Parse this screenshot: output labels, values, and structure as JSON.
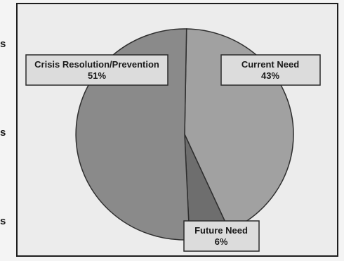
{
  "edge_glyphs": [
    "s",
    "s",
    "s"
  ],
  "colors": {
    "background": "#ececec",
    "frame": "#1e1e1e",
    "slice_stroke": "#2e2e2e",
    "label_box_fill": "#dcdcdc",
    "label_box_stroke": "#2a2a2a"
  },
  "chart_data": {
    "type": "pie",
    "title": "",
    "slices": [
      {
        "label": "Current Need",
        "value": 43,
        "value_label": "43%",
        "color": "#a1a1a1"
      },
      {
        "label": "Future Need",
        "value": 6,
        "value_label": "6%",
        "color": "#6e6e6e"
      },
      {
        "label": "Crisis Resolution/Prevention",
        "value": 51,
        "value_label": "51%",
        "color": "#8a8a8a"
      }
    ],
    "legend": "none"
  }
}
